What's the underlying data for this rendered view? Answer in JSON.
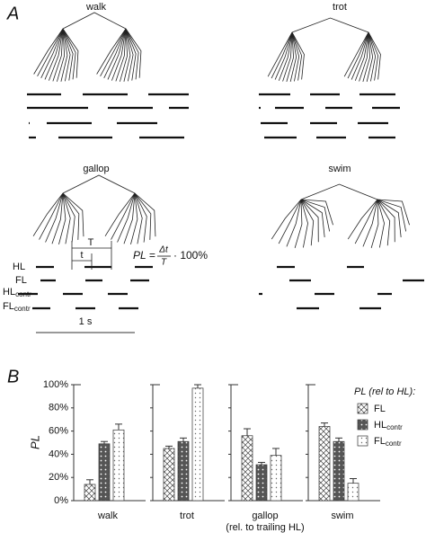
{
  "panel_a": {
    "label": "A",
    "gaits": [
      "walk",
      "trot",
      "gallop",
      "swim"
    ],
    "rows": [
      {
        "name": "HL",
        "subscript": null
      },
      {
        "name": "FL",
        "subscript": null
      },
      {
        "name": "HL",
        "subscript": "contr"
      },
      {
        "name": "FL",
        "subscript": "contr"
      }
    ],
    "period_label": "T",
    "delay_label": "t",
    "formula": {
      "lhs": "PL =",
      "numerator": "Δt",
      "denominator": "T",
      "rhs": "· 100%"
    },
    "scale_bar": "1 s"
  },
  "chart_data": {
    "type": "bar",
    "panel_label": "B",
    "y_label": "PL",
    "categories": [
      "walk",
      "trot",
      "gallop",
      "swim"
    ],
    "category_notes": [
      null,
      null,
      "(rel. to trailing HL)",
      null
    ],
    "legend_title": "PL (rel to HL):",
    "series": [
      {
        "name": "FL",
        "subscript": null,
        "color": "#ffffff",
        "values": [
          14,
          45,
          56,
          64
        ],
        "errors": [
          4,
          2,
          6,
          3
        ]
      },
      {
        "name": "HL",
        "subscript": "contr",
        "color": "#555555",
        "values": [
          49,
          51,
          31,
          51
        ],
        "errors": [
          2,
          3,
          2,
          3
        ]
      },
      {
        "name": "FL",
        "subscript": "contr",
        "color": "#f4f4f4",
        "values": [
          61,
          97,
          39,
          15
        ],
        "errors": [
          5,
          3,
          6,
          4
        ]
      }
    ],
    "ylim": [
      0,
      100
    ],
    "yticks": [
      {
        "value": 0,
        "label": "0%"
      },
      {
        "value": 20,
        "label": "20%"
      },
      {
        "value": 40,
        "label": "40%"
      },
      {
        "value": 60,
        "label": "60%"
      },
      {
        "value": 80,
        "label": "80%"
      },
      {
        "value": 100,
        "label": "100%"
      }
    ]
  }
}
